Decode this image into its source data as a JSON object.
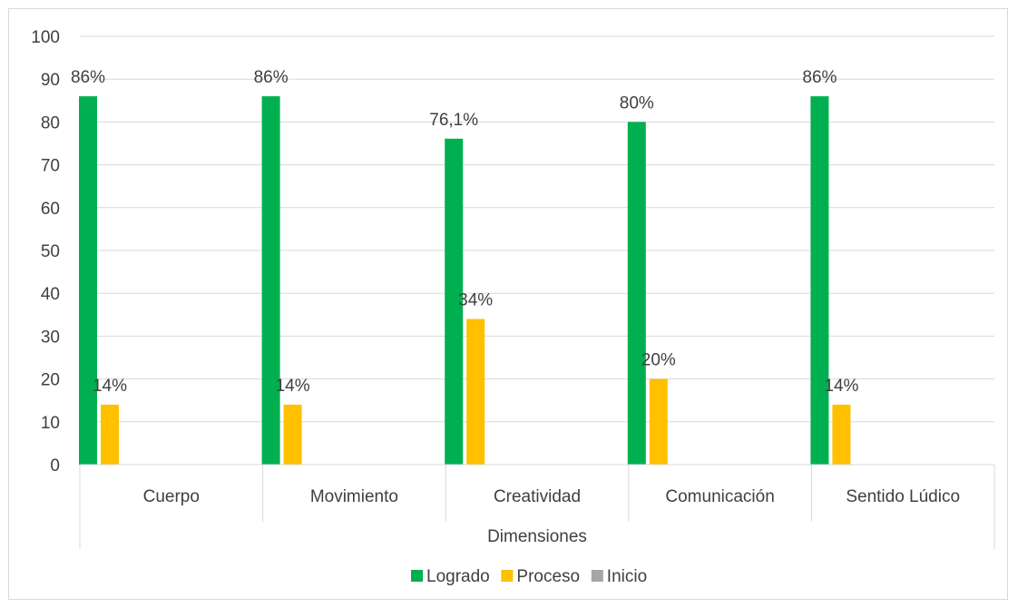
{
  "chart_data": {
    "type": "bar",
    "categories": [
      "Cuerpo",
      "Movimiento",
      "Creatividad",
      "Comunicación",
      "Sentido Lúdico"
    ],
    "series": [
      {
        "name": "Logrado",
        "values": [
          86,
          86,
          76.1,
          80,
          86
        ],
        "labels": [
          "86%",
          "86%",
          "76,1%",
          "80%",
          "86%"
        ],
        "color": "#00b050"
      },
      {
        "name": "Proceso",
        "values": [
          14,
          14,
          34,
          20,
          14
        ],
        "labels": [
          "14%",
          "14%",
          "34%",
          "20%",
          "14%"
        ],
        "color": "#ffc000"
      },
      {
        "name": "Inicio",
        "values": [
          0,
          0,
          0,
          0,
          0
        ],
        "labels": [
          "",
          "",
          "",
          "",
          ""
        ],
        "color": "#a5a5a5"
      }
    ],
    "xlabel": "Dimensiones",
    "ylabel": "",
    "ylim": [
      0,
      100
    ],
    "yticks": [
      0,
      10,
      20,
      30,
      40,
      50,
      60,
      70,
      80,
      90,
      100
    ],
    "grid": true,
    "legend_position": "bottom"
  }
}
